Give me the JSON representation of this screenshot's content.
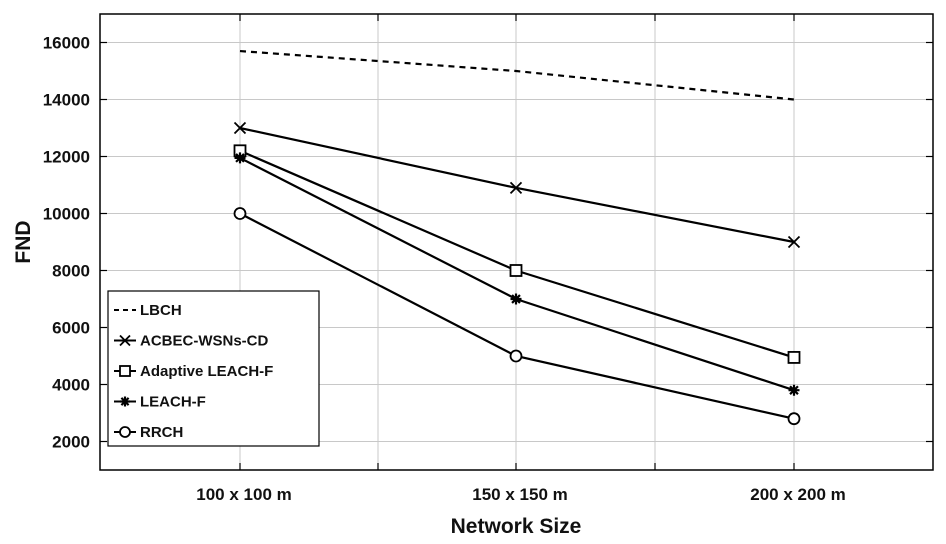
{
  "chart_data": {
    "type": "line",
    "title": "",
    "xlabel": "Network Size",
    "ylabel": "FND",
    "categories": [
      "100  x 100 m",
      "150  x 150 m",
      "200  x 200 m"
    ],
    "ylim": [
      1000,
      17000
    ],
    "yticks": [
      2000,
      4000,
      6000,
      8000,
      10000,
      12000,
      14000,
      16000
    ],
    "grid": true,
    "legend_position": "bottom-left",
    "series": [
      {
        "name": "LBCH",
        "values": [
          15700,
          15000,
          14000
        ],
        "marker": "none",
        "line": "dashed",
        "color": "#000000"
      },
      {
        "name": "ACBEC-WSNs-CD",
        "values": [
          13000,
          10900,
          9000
        ],
        "marker": "x",
        "line": "solid",
        "color": "#000000"
      },
      {
        "name": "Adaptive LEACH-F",
        "values": [
          12200,
          8000,
          4950
        ],
        "marker": "square",
        "line": "solid",
        "color": "#000000"
      },
      {
        "name": "LEACH-F",
        "values": [
          11950,
          7000,
          3800
        ],
        "marker": "asterisk",
        "line": "solid",
        "color": "#000000"
      },
      {
        "name": "RRCH",
        "values": [
          10000,
          5000,
          2800
        ],
        "marker": "circle",
        "line": "solid",
        "color": "#000000"
      }
    ]
  }
}
